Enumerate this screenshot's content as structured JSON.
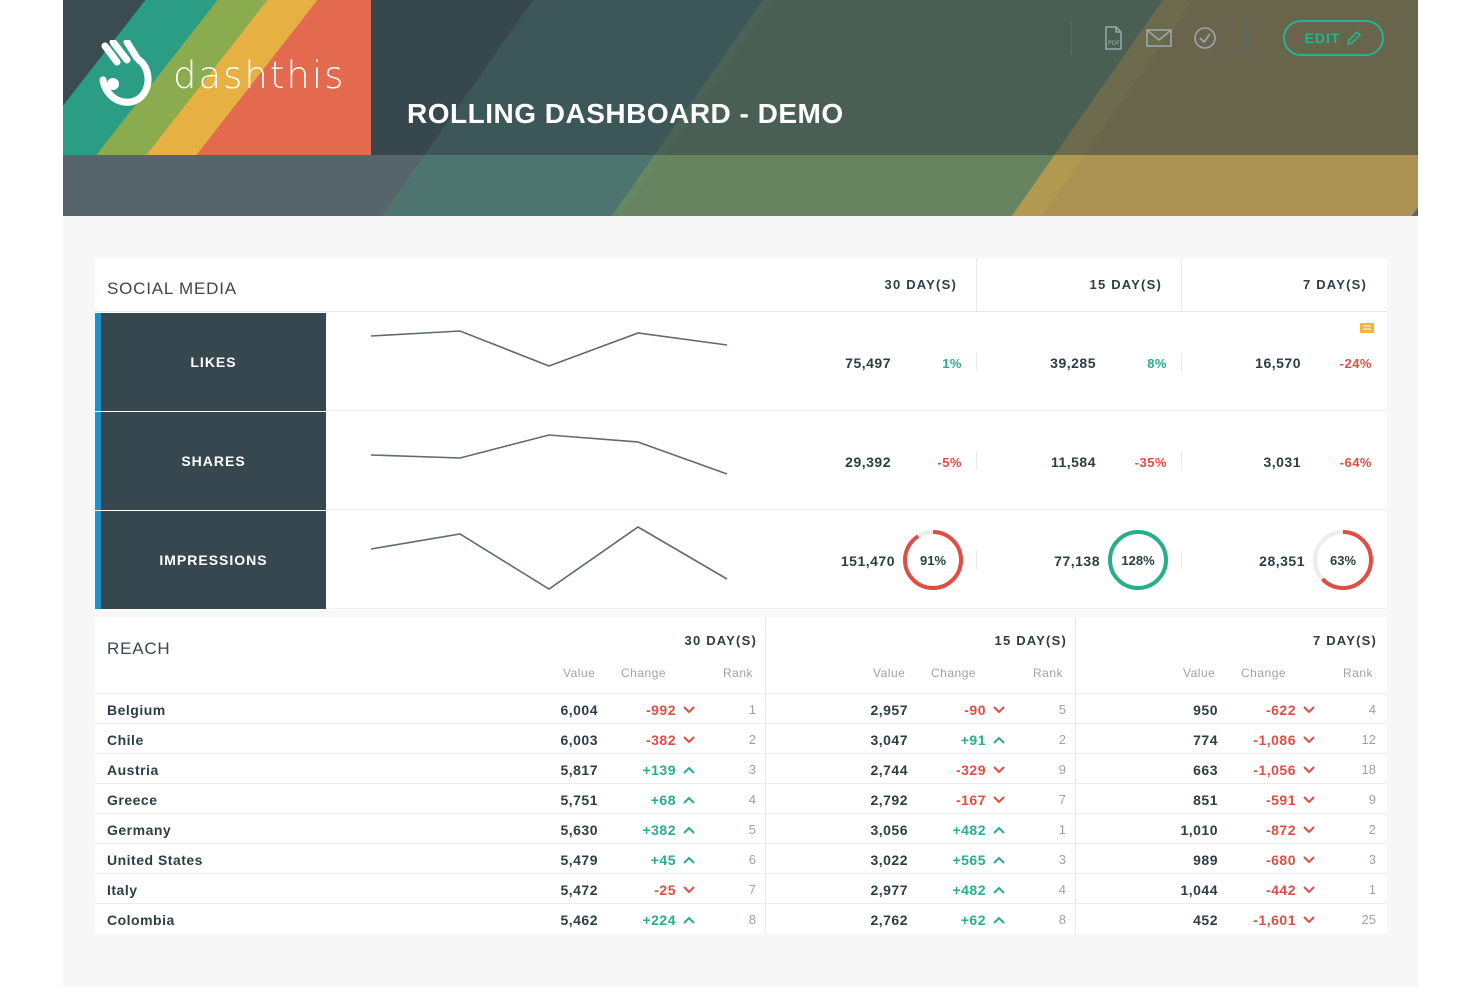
{
  "header": {
    "logo_text": "dashthis",
    "title": "ROLLING DASHBOARD - DEMO",
    "toolbar": {
      "pdf_icon": "pdf-icon",
      "mail_icon": "envelope-icon",
      "check_icon": "check-circle-icon",
      "edit_label": "EDIT"
    },
    "colors": {
      "teal": "#2a9d84",
      "green": "#8bab4f",
      "yellow": "#e7b042",
      "red": "#e36a4f",
      "accent": "#28b38f"
    }
  },
  "social": {
    "title": "SOCIAL MEDIA",
    "periods": [
      "30 DAY(S)",
      "15 DAY(S)",
      "7 DAY(S)"
    ],
    "rows": [
      {
        "label": "LIKES",
        "spark": [
          75,
          80,
          45,
          78,
          66
        ],
        "cells": [
          {
            "value": "75,497",
            "change": "1%",
            "dir": "pos"
          },
          {
            "value": "39,285",
            "change": "8%",
            "dir": "pos"
          },
          {
            "value": "16,570",
            "change": "-24%",
            "dir": "neg"
          }
        ],
        "note_icon": "comment-icon"
      },
      {
        "label": "SHARES",
        "spark": [
          55,
          52,
          75,
          68,
          36
        ],
        "cells": [
          {
            "value": "29,392",
            "change": "-5%",
            "dir": "neg"
          },
          {
            "value": "11,584",
            "change": "-35%",
            "dir": "neg"
          },
          {
            "value": "3,031",
            "change": "-64%",
            "dir": "neg"
          }
        ]
      },
      {
        "label": "IMPRESSIONS",
        "spark": [
          60,
          75,
          20,
          82,
          30
        ],
        "cells": [
          {
            "value": "151,470",
            "change": "91%",
            "ring": 0.91,
            "dir": "neg"
          },
          {
            "value": "77,138",
            "change": "128%",
            "ring": 1.0,
            "dir": "pos"
          },
          {
            "value": "28,351",
            "change": "63%",
            "ring": 0.63,
            "dir": "neg"
          }
        ]
      }
    ]
  },
  "reach": {
    "title": "REACH",
    "periods": [
      "30 DAY(S)",
      "15 DAY(S)",
      "7 DAY(S)"
    ],
    "sub_headers": [
      "Value",
      "Change",
      "Rank"
    ],
    "rows": [
      {
        "country": "Belgium",
        "p": [
          {
            "v": "6,004",
            "c": "-992",
            "d": "neg",
            "r": "1"
          },
          {
            "v": "2,957",
            "c": "-90",
            "d": "neg",
            "r": "5"
          },
          {
            "v": "950",
            "c": "-622",
            "d": "neg",
            "r": "4"
          }
        ]
      },
      {
        "country": "Chile",
        "p": [
          {
            "v": "6,003",
            "c": "-382",
            "d": "neg",
            "r": "2"
          },
          {
            "v": "3,047",
            "c": "+91",
            "d": "pos",
            "r": "2"
          },
          {
            "v": "774",
            "c": "-1,086",
            "d": "neg",
            "r": "12"
          }
        ]
      },
      {
        "country": "Austria",
        "p": [
          {
            "v": "5,817",
            "c": "+139",
            "d": "pos",
            "r": "3"
          },
          {
            "v": "2,744",
            "c": "-329",
            "d": "neg",
            "r": "9"
          },
          {
            "v": "663",
            "c": "-1,056",
            "d": "neg",
            "r": "18"
          }
        ]
      },
      {
        "country": "Greece",
        "p": [
          {
            "v": "5,751",
            "c": "+68",
            "d": "pos",
            "r": "4"
          },
          {
            "v": "2,792",
            "c": "-167",
            "d": "neg",
            "r": "7"
          },
          {
            "v": "851",
            "c": "-591",
            "d": "neg",
            "r": "9"
          }
        ]
      },
      {
        "country": "Germany",
        "p": [
          {
            "v": "5,630",
            "c": "+382",
            "d": "pos",
            "r": "5"
          },
          {
            "v": "3,056",
            "c": "+482",
            "d": "pos",
            "r": "1"
          },
          {
            "v": "1,010",
            "c": "-872",
            "d": "neg",
            "r": "2"
          }
        ]
      },
      {
        "country": "United States",
        "p": [
          {
            "v": "5,479",
            "c": "+45",
            "d": "pos",
            "r": "6"
          },
          {
            "v": "3,022",
            "c": "+565",
            "d": "pos",
            "r": "3"
          },
          {
            "v": "989",
            "c": "-680",
            "d": "neg",
            "r": "3"
          }
        ]
      },
      {
        "country": "Italy",
        "p": [
          {
            "v": "5,472",
            "c": "-25",
            "d": "neg",
            "r": "7"
          },
          {
            "v": "2,977",
            "c": "+482",
            "d": "pos",
            "r": "4"
          },
          {
            "v": "1,044",
            "c": "-442",
            "d": "neg",
            "r": "1"
          }
        ]
      },
      {
        "country": "Colombia",
        "p": [
          {
            "v": "5,462",
            "c": "+224",
            "d": "pos",
            "r": "8"
          },
          {
            "v": "2,762",
            "c": "+62",
            "d": "pos",
            "r": "8"
          },
          {
            "v": "452",
            "c": "-1,601",
            "d": "neg",
            "r": "25"
          }
        ]
      }
    ]
  }
}
